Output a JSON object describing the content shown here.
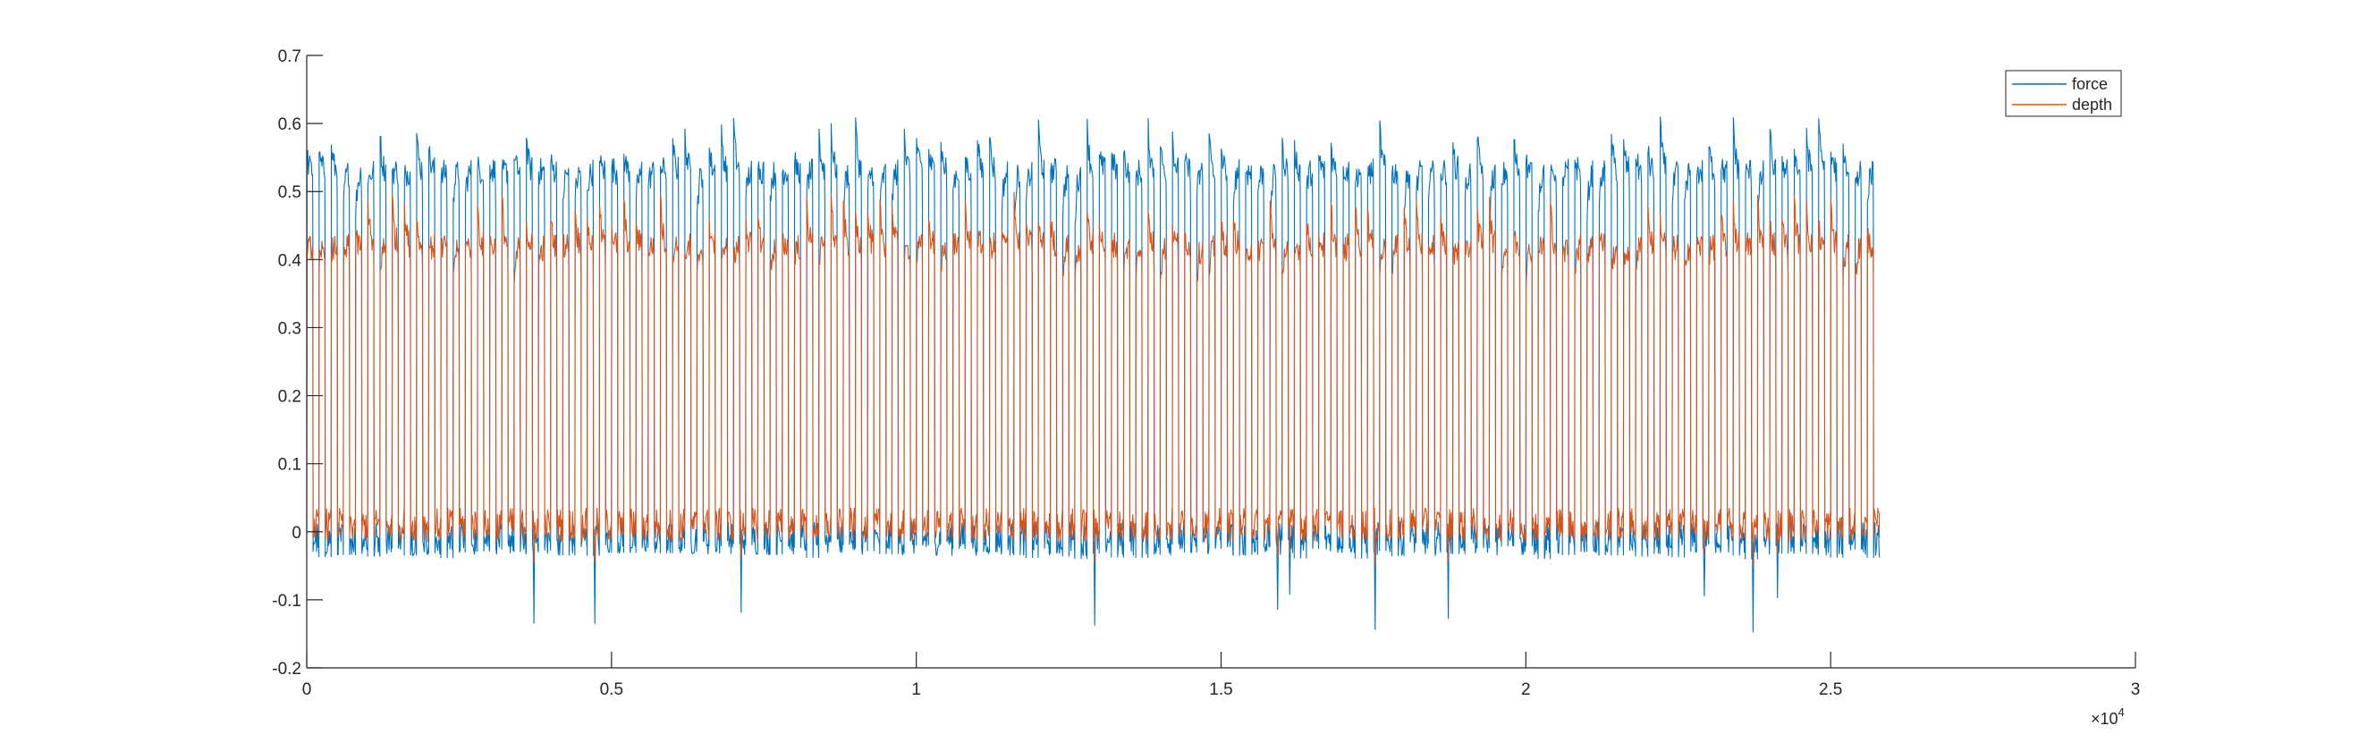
{
  "chart_data": {
    "type": "line",
    "title": "",
    "xlabel": "",
    "ylabel": "",
    "xlim": [
      0,
      30000
    ],
    "ylim": [
      -0.2,
      0.7
    ],
    "x_exponent_label": "×10",
    "x_exponent_power": "4",
    "x_ticks": [
      0,
      5000,
      10000,
      15000,
      20000,
      25000,
      30000
    ],
    "x_tick_labels": [
      "0",
      "0.5",
      "1",
      "1.5",
      "2",
      "2.5",
      "3"
    ],
    "y_ticks": [
      -0.2,
      -0.1,
      0,
      0.1,
      0.2,
      0.3,
      0.4,
      0.5,
      0.6,
      0.7
    ],
    "y_tick_labels": [
      "-0.2",
      "-0.1",
      "0",
      "0.1",
      "0.2",
      "0.3",
      "0.4",
      "0.5",
      "0.6",
      "0.7"
    ],
    "grid": false,
    "legend_position": "top-right",
    "data_x_range": [
      0,
      25800
    ],
    "cycle_period": 200,
    "series": [
      {
        "name": "force",
        "color": "#0072BD",
        "low_level": -0.01,
        "high_level": 0.53,
        "high_peak_range": [
          0.45,
          0.61
        ],
        "low_dip_min": -0.15
      },
      {
        "name": "depth",
        "color": "#D95319",
        "low_level": 0.01,
        "high_level": 0.42,
        "high_peak_range": [
          0.36,
          0.5
        ],
        "low_dip_min": -0.05
      }
    ]
  }
}
